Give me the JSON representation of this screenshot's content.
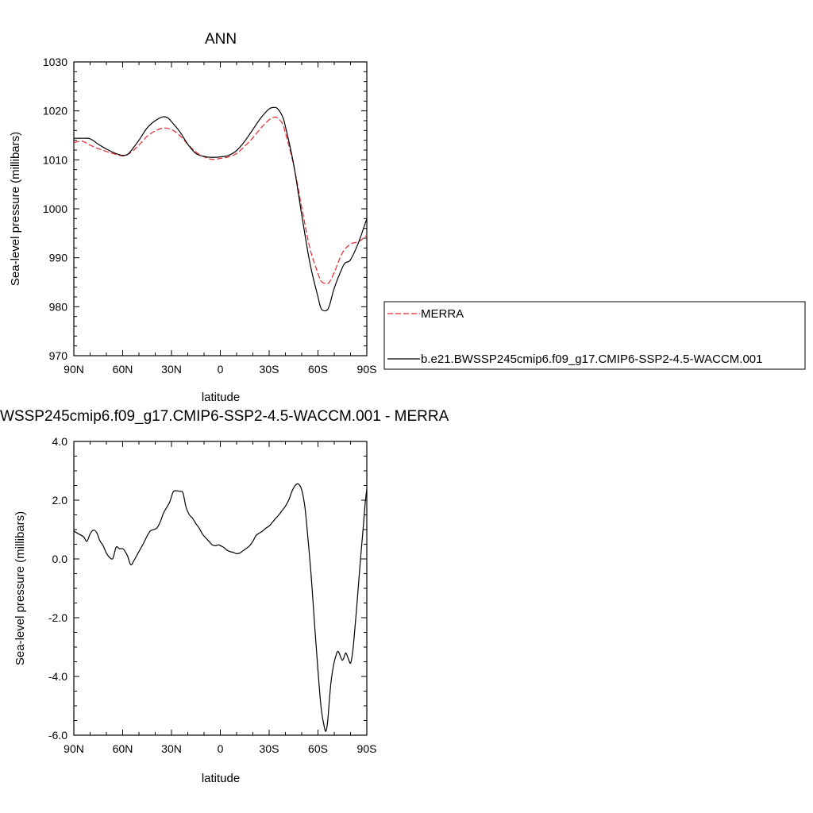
{
  "chart_data": [
    {
      "type": "line",
      "title": "ANN",
      "xlabel": "latitude",
      "ylabel": "Sea-level pressure (millibars)",
      "xlim": [
        -90,
        90
      ],
      "ylim": [
        970,
        1030
      ],
      "xticks": [
        -90,
        -60,
        -30,
        0,
        30,
        60,
        90
      ],
      "xtick_labels": [
        "90N",
        "60N",
        "30N",
        "0",
        "30S",
        "60S",
        "90S"
      ],
      "yticks": [
        970,
        980,
        990,
        1000,
        1010,
        1020,
        1030
      ],
      "ytick_labels": [
        "970",
        "980",
        "990",
        "1000",
        "1010",
        "1020",
        "1030"
      ],
      "legend": {
        "placement": "right",
        "entries": [
          {
            "label": "MERRA",
            "color": "#e8262b",
            "dash": true
          },
          {
            "label": "b.e21.BWSSP245cmip6.f09_g17.CMIP6-SSP2-4.5-WACCM.001",
            "color": "#000000",
            "dash": false
          }
        ]
      },
      "series": [
        {
          "name": "MERRA",
          "color": "#e8262b",
          "dashed": true,
          "x": [
            -90,
            -85,
            -80,
            -75,
            -70,
            -65,
            -60,
            -57,
            -55,
            -50,
            -45,
            -40,
            -35,
            -30,
            -25,
            -20,
            -15,
            -10,
            -5,
            0,
            5,
            10,
            15,
            20,
            25,
            30,
            33,
            35,
            38,
            40,
            45,
            50,
            55,
            60,
            62,
            65,
            67,
            70,
            75,
            80,
            85,
            90
          ],
          "y": [
            1013.5,
            1013.8,
            1013.0,
            1012.3,
            1011.7,
            1011.2,
            1010.8,
            1011.1,
            1011.5,
            1013.0,
            1014.8,
            1015.9,
            1016.5,
            1016.2,
            1015.0,
            1013.2,
            1011.6,
            1010.6,
            1010.1,
            1010.3,
            1010.6,
            1011.3,
            1012.8,
            1014.5,
            1016.5,
            1018.2,
            1018.7,
            1018.6,
            1017.5,
            1015.5,
            1009.0,
            1000.3,
            992.0,
            986.8,
            985.2,
            984.7,
            985.0,
            987.0,
            991.0,
            992.8,
            993.3,
            994.6
          ]
        },
        {
          "name": "b.e21.BWSSP245cmip6.f09_g17.CMIP6-SSP2-4.5-WACCM.001",
          "color": "#000000",
          "dashed": false,
          "x": [
            -90,
            -85,
            -80,
            -75,
            -70,
            -65,
            -60,
            -57,
            -55,
            -50,
            -45,
            -40,
            -35,
            -32,
            -30,
            -25,
            -20,
            -15,
            -10,
            -5,
            0,
            5,
            10,
            15,
            20,
            25,
            30,
            33,
            35,
            38,
            40,
            45,
            50,
            55,
            60,
            62,
            65,
            67,
            70,
            75,
            77,
            80,
            85,
            90
          ],
          "y": [
            1014.4,
            1014.4,
            1014.3,
            1013.2,
            1012.2,
            1011.4,
            1010.9,
            1011.1,
            1011.8,
            1014.0,
            1016.5,
            1018.0,
            1018.8,
            1018.5,
            1017.8,
            1015.8,
            1013.2,
            1011.3,
            1010.7,
            1010.5,
            1010.6,
            1010.9,
            1011.9,
            1013.8,
            1016.2,
            1018.6,
            1020.4,
            1020.7,
            1020.5,
            1019.0,
            1016.8,
            1009.2,
            998.8,
            989.0,
            982.0,
            979.6,
            979.2,
            980.2,
            983.8,
            988.0,
            989.0,
            989.6,
            993.2,
            998.0
          ]
        }
      ]
    },
    {
      "type": "line",
      "title": "WSSP245cmip6.f09_g17.CMIP6-SSP2-4.5-WACCM.001 - MERRA",
      "xlabel": "latitude",
      "ylabel": "Sea-level pressure (millibars)",
      "xlim": [
        -90,
        90
      ],
      "ylim": [
        -6.0,
        4.0
      ],
      "xticks": [
        -90,
        -60,
        -30,
        0,
        30,
        60,
        90
      ],
      "xtick_labels": [
        "90N",
        "60N",
        "30N",
        "0",
        "30S",
        "60S",
        "90S"
      ],
      "yticks": [
        -6,
        -4,
        -2,
        0,
        2,
        4
      ],
      "ytick_labels": [
        "-6.0",
        "-4.0",
        "-2.0",
        "0.0",
        "2.0",
        "4.0"
      ],
      "series": [
        {
          "color": "#000000",
          "dashed": false,
          "x": [
            -90,
            -87,
            -84,
            -82,
            -80,
            -78,
            -76,
            -74,
            -72,
            -70,
            -68,
            -66,
            -64,
            -62,
            -60,
            -59,
            -57,
            -55,
            -53,
            -51,
            -49,
            -47,
            -45,
            -43,
            -41,
            -39,
            -37,
            -35,
            -33,
            -31,
            -29,
            -27,
            -25,
            -23,
            -21,
            -19,
            -17,
            -15,
            -13,
            -11,
            -9,
            -7,
            -5,
            -3,
            -1,
            0,
            2,
            4,
            6,
            8,
            10,
            12,
            14,
            16,
            18,
            20,
            22,
            24,
            26,
            28,
            30,
            32,
            34,
            36,
            38,
            40,
            42,
            44,
            46,
            48,
            50,
            52,
            54,
            56,
            58,
            60,
            62,
            64,
            65,
            66,
            67,
            68,
            69,
            70,
            71,
            72,
            73,
            74,
            75,
            76,
            77,
            78,
            79,
            80,
            81,
            82,
            84,
            86,
            88,
            89,
            90
          ],
          "y": [
            0.95,
            0.85,
            0.75,
            0.6,
            0.85,
            0.98,
            0.9,
            0.62,
            0.45,
            0.2,
            0.05,
            0.02,
            0.4,
            0.35,
            0.35,
            0.3,
            0.1,
            -0.2,
            -0.05,
            0.15,
            0.35,
            0.55,
            0.78,
            0.95,
            1.0,
            1.05,
            1.25,
            1.55,
            1.75,
            1.95,
            2.28,
            2.32,
            2.3,
            2.25,
            1.75,
            1.5,
            1.38,
            1.2,
            1.05,
            0.85,
            0.72,
            0.6,
            0.48,
            0.45,
            0.48,
            0.45,
            0.4,
            0.3,
            0.25,
            0.22,
            0.18,
            0.2,
            0.28,
            0.36,
            0.45,
            0.6,
            0.8,
            0.88,
            0.95,
            1.05,
            1.12,
            1.25,
            1.38,
            1.5,
            1.65,
            1.8,
            2.0,
            2.3,
            2.5,
            2.55,
            2.35,
            1.75,
            0.6,
            -0.7,
            -2.3,
            -3.8,
            -5.1,
            -5.75,
            -5.85,
            -5.5,
            -4.8,
            -4.2,
            -3.8,
            -3.5,
            -3.3,
            -3.15,
            -3.2,
            -3.35,
            -3.45,
            -3.35,
            -3.2,
            -3.3,
            -3.45,
            -3.55,
            -3.3,
            -2.8,
            -1.5,
            -0.1,
            1.2,
            1.9,
            2.38
          ]
        }
      ]
    }
  ]
}
